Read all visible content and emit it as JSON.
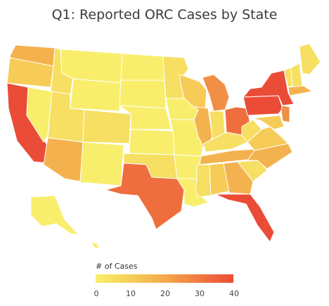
{
  "title": "Q1: Reported ORC Cases by State",
  "colors": {
    "c0": "#f8ee6c",
    "c1": "#f6df62",
    "c2": "#f6cb57",
    "c3": "#f4b24e",
    "c4": "#f18f45",
    "c5": "#ee6e3e",
    "c6": "#eb4c37"
  },
  "legend": {
    "title": "# of Cases",
    "ticks": [
      "0",
      "10",
      "20",
      "30",
      "40"
    ],
    "gradient": [
      "#f8ee6c",
      "#f6cf58",
      "#f4a94b",
      "#f07a40",
      "#eb4c37"
    ]
  },
  "states": [
    {
      "name": "Washington",
      "level": "c3"
    },
    {
      "name": "Oregon",
      "level": "c2"
    },
    {
      "name": "California",
      "level": "c6"
    },
    {
      "name": "Nevada",
      "level": "c0"
    },
    {
      "name": "Idaho",
      "level": "c1"
    },
    {
      "name": "Montana",
      "level": "c0"
    },
    {
      "name": "Wyoming",
      "level": "c0"
    },
    {
      "name": "Utah",
      "level": "c1"
    },
    {
      "name": "Arizona",
      "level": "c3"
    },
    {
      "name": "Colorado",
      "level": "c1"
    },
    {
      "name": "New Mexico",
      "level": "c0"
    },
    {
      "name": "North Dakota",
      "level": "c0"
    },
    {
      "name": "South Dakota",
      "level": "c0"
    },
    {
      "name": "Nebraska",
      "level": "c0"
    },
    {
      "name": "Kansas",
      "level": "c0"
    },
    {
      "name": "Oklahoma",
      "level": "c1"
    },
    {
      "name": "Texas",
      "level": "c5"
    },
    {
      "name": "Minnesota",
      "level": "c1"
    },
    {
      "name": "Iowa",
      "level": "c0"
    },
    {
      "name": "Missouri",
      "level": "c0"
    },
    {
      "name": "Arkansas",
      "level": "c0"
    },
    {
      "name": "Louisiana",
      "level": "c0"
    },
    {
      "name": "Wisconsin",
      "level": "c2"
    },
    {
      "name": "Illinois",
      "level": "c3"
    },
    {
      "name": "Michigan",
      "level": "c4"
    },
    {
      "name": "Indiana",
      "level": "c1"
    },
    {
      "name": "Ohio",
      "level": "c5"
    },
    {
      "name": "Kentucky",
      "level": "c1"
    },
    {
      "name": "Tennessee",
      "level": "c3"
    },
    {
      "name": "Mississippi",
      "level": "c1"
    },
    {
      "name": "Alabama",
      "level": "c2"
    },
    {
      "name": "Georgia",
      "level": "c3"
    },
    {
      "name": "Florida",
      "level": "c6"
    },
    {
      "name": "South Carolina",
      "level": "c1"
    },
    {
      "name": "North Carolina",
      "level": "c3"
    },
    {
      "name": "Virginia",
      "level": "c2"
    },
    {
      "name": "West Virginia",
      "level": "c1"
    },
    {
      "name": "Pennsylvania",
      "level": "c6"
    },
    {
      "name": "New York",
      "level": "c6"
    },
    {
      "name": "Maine",
      "level": "c1"
    },
    {
      "name": "Vermont",
      "level": "c1"
    },
    {
      "name": "New Hampshire",
      "level": "c1"
    },
    {
      "name": "Massachusetts",
      "level": "c3"
    },
    {
      "name": "New Jersey",
      "level": "c4"
    },
    {
      "name": "Maryland",
      "level": "c2"
    },
    {
      "name": "Alaska",
      "level": "c0"
    },
    {
      "name": "Hawaii",
      "level": "c0"
    }
  ]
}
